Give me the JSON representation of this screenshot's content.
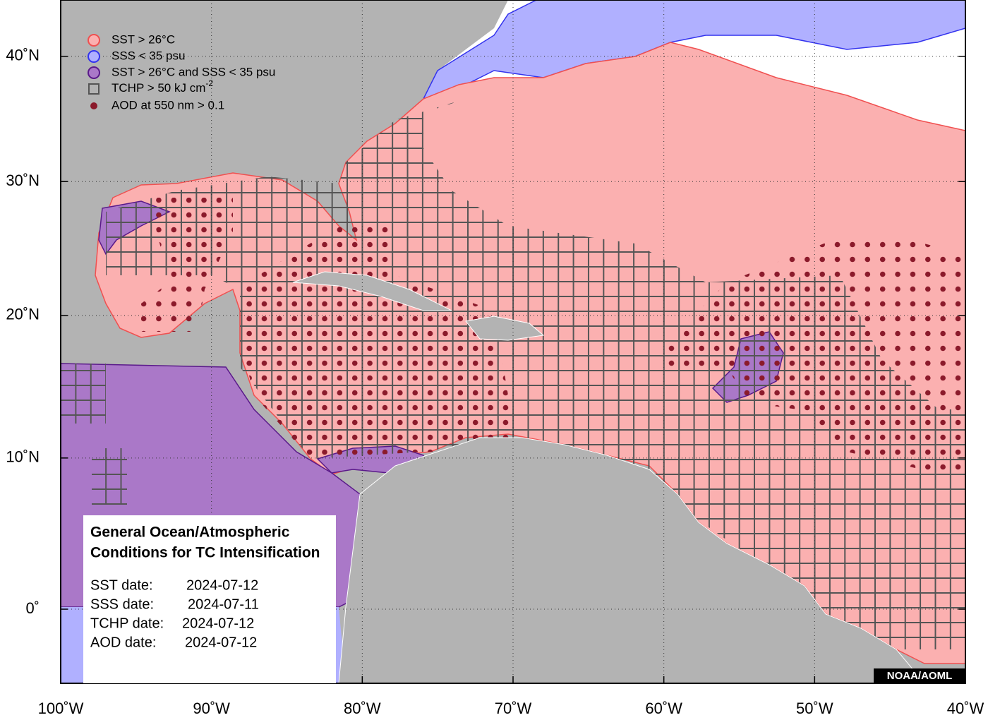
{
  "map": {
    "xlim": [
      -100,
      -40
    ],
    "xticks": [
      {
        "value": -100,
        "label": "100˚W"
      },
      {
        "value": -90,
        "label": "90˚W"
      },
      {
        "value": -80,
        "label": "80˚W"
      },
      {
        "value": -70,
        "label": "70˚W"
      },
      {
        "value": -60,
        "label": "60˚W"
      },
      {
        "value": -50,
        "label": "50˚W"
      },
      {
        "value": -40,
        "label": "40˚W"
      }
    ],
    "yticks": [
      {
        "value": 0,
        "label": "0˚"
      },
      {
        "value": 10,
        "label": "10˚N"
      },
      {
        "value": 20,
        "label": "20˚N"
      },
      {
        "value": 30,
        "label": "30˚N"
      },
      {
        "value": 40,
        "label": "40˚N"
      }
    ],
    "legend": [
      {
        "text": "SST > 26°C"
      },
      {
        "text": "SSS < 35 psu"
      },
      {
        "text": "SST > 26°C and SSS < 35 psu"
      },
      {
        "text": "TCHP > 50 kJ cm",
        "superscript": "-2"
      },
      {
        "text": "AOD at 550 nm > 0.1"
      }
    ],
    "info_box": {
      "title": [
        "General Ocean/Atmospheric",
        "Conditions for TC Intensification"
      ],
      "rows": [
        {
          "label": "SST date:",
          "value": "2024-07-12"
        },
        {
          "label": "SSS date:",
          "value": "2024-07-11"
        },
        {
          "label": "TCHP date:",
          "value": "2024-07-12"
        },
        {
          "label": "AOD date:",
          "value": "2024-07-12"
        }
      ]
    },
    "credit": "NOAA/AOML"
  }
}
